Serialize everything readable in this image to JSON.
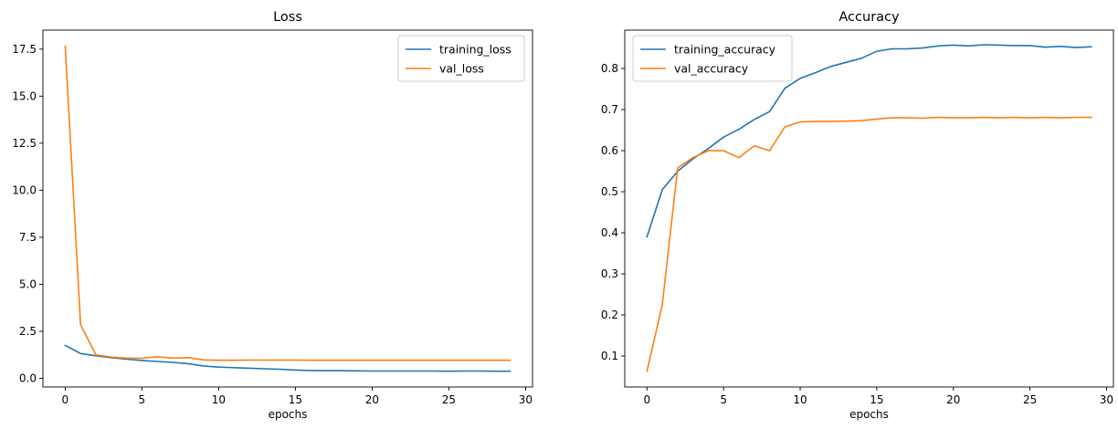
{
  "chart_data": [
    {
      "type": "line",
      "title": "Loss",
      "xlabel": "epochs",
      "ylabel": "",
      "xlim": [
        -1.45,
        30.45
      ],
      "ylim": [
        -0.46,
        18.51
      ],
      "xticks": [
        0,
        5,
        10,
        15,
        20,
        25,
        30
      ],
      "xtick_labels": [
        "0",
        "5",
        "10",
        "15",
        "20",
        "25",
        "30"
      ],
      "yticks": [
        0,
        2.5,
        5,
        7.5,
        10,
        12.5,
        15,
        17.5
      ],
      "ytick_labels": [
        "0.0",
        "2.5",
        "5.0",
        "7.5",
        "10.0",
        "12.5",
        "15.0",
        "17.5"
      ],
      "grid": false,
      "legend_position": "top-right",
      "x": [
        0,
        1,
        2,
        3,
        4,
        5,
        6,
        7,
        8,
        9,
        10,
        11,
        12,
        13,
        14,
        15,
        16,
        17,
        18,
        19,
        20,
        21,
        22,
        23,
        24,
        25,
        26,
        27,
        28,
        29
      ],
      "series": [
        {
          "name": "training_loss",
          "color": "#1f77b4",
          "values": [
            1.75,
            1.32,
            1.2,
            1.1,
            1.02,
            0.95,
            0.9,
            0.85,
            0.78,
            0.66,
            0.6,
            0.57,
            0.54,
            0.51,
            0.48,
            0.44,
            0.42,
            0.41,
            0.41,
            0.4,
            0.39,
            0.39,
            0.39,
            0.39,
            0.39,
            0.38,
            0.39,
            0.39,
            0.38,
            0.38
          ]
        },
        {
          "name": "val_loss",
          "color": "#ff7f0e",
          "values": [
            17.65,
            2.85,
            1.25,
            1.13,
            1.08,
            1.07,
            1.15,
            1.08,
            1.1,
            0.98,
            0.96,
            0.96,
            0.97,
            0.97,
            0.97,
            0.97,
            0.96,
            0.96,
            0.96,
            0.96,
            0.96,
            0.96,
            0.96,
            0.96,
            0.96,
            0.96,
            0.96,
            0.96,
            0.96,
            0.96
          ]
        }
      ]
    },
    {
      "type": "line",
      "title": "Accuracy",
      "xlabel": "epochs",
      "ylabel": "",
      "xlim": [
        -1.45,
        30.45
      ],
      "ylim": [
        0.0245,
        0.8935
      ],
      "xticks": [
        0,
        5,
        10,
        15,
        20,
        25,
        30
      ],
      "xtick_labels": [
        "0",
        "5",
        "10",
        "15",
        "20",
        "25",
        "30"
      ],
      "yticks": [
        0.1,
        0.2,
        0.3,
        0.4,
        0.5,
        0.6,
        0.7,
        0.8
      ],
      "ytick_labels": [
        "0.1",
        "0.2",
        "0.3",
        "0.4",
        "0.5",
        "0.6",
        "0.7",
        "0.8"
      ],
      "grid": false,
      "legend_position": "top-left",
      "x": [
        0,
        1,
        2,
        3,
        4,
        5,
        6,
        7,
        8,
        9,
        10,
        11,
        12,
        13,
        14,
        15,
        16,
        17,
        18,
        19,
        20,
        21,
        22,
        23,
        24,
        25,
        26,
        27,
        28,
        29
      ],
      "series": [
        {
          "name": "training_accuracy",
          "color": "#1f77b4",
          "values": [
            0.39,
            0.505,
            0.55,
            0.58,
            0.605,
            0.633,
            0.652,
            0.676,
            0.695,
            0.752,
            0.776,
            0.79,
            0.805,
            0.815,
            0.825,
            0.842,
            0.848,
            0.848,
            0.85,
            0.855,
            0.857,
            0.855,
            0.858,
            0.857,
            0.856,
            0.856,
            0.852,
            0.854,
            0.851,
            0.853
          ]
        },
        {
          "name": "val_accuracy",
          "color": "#ff7f0e",
          "values": [
            0.063,
            0.225,
            0.558,
            0.583,
            0.6,
            0.6,
            0.583,
            0.612,
            0.6,
            0.658,
            0.67,
            0.671,
            0.671,
            0.672,
            0.673,
            0.677,
            0.68,
            0.68,
            0.679,
            0.681,
            0.68,
            0.68,
            0.681,
            0.68,
            0.681,
            0.68,
            0.681,
            0.68,
            0.681,
            0.681
          ]
        }
      ]
    }
  ]
}
